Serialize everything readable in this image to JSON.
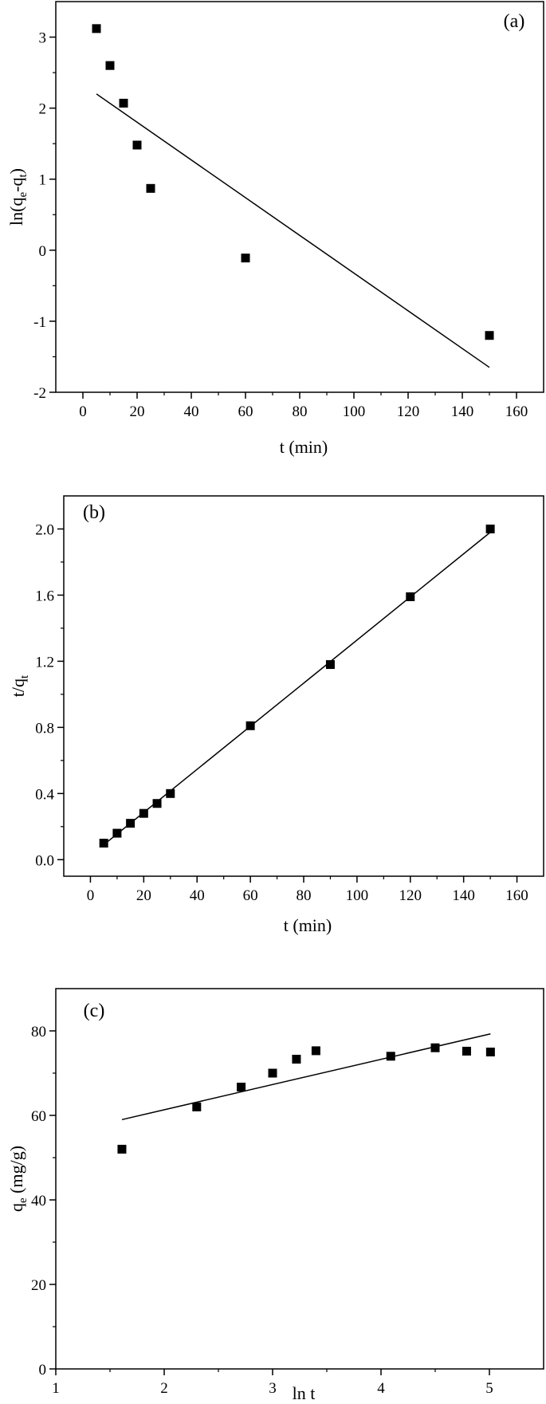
{
  "chart_data": [
    {
      "type": "scatter",
      "panel_label": "(a)",
      "xlabel": "t (min)",
      "ylabel": {
        "main": "ln(q",
        "sub1": "e",
        "mid": "-q",
        "sub2": "t",
        "end": ")"
      },
      "xlim": [
        -10,
        170
      ],
      "ylim": [
        -2,
        3.5
      ],
      "xticks": [
        0,
        20,
        40,
        60,
        80,
        100,
        120,
        140,
        160
      ],
      "yticks": [
        -2,
        -1,
        0,
        1,
        2,
        3
      ],
      "series": [
        {
          "marker": "square",
          "x": [
            5,
            10,
            15,
            20,
            25,
            60,
            150
          ],
          "y": [
            3.12,
            2.6,
            2.07,
            1.48,
            0.87,
            -0.11,
            -1.2
          ]
        }
      ],
      "fit_line": {
        "x": [
          5,
          150
        ],
        "y": [
          2.2,
          -1.65
        ]
      }
    },
    {
      "type": "scatter",
      "panel_label": "(b)",
      "xlabel": "t (min)",
      "ylabel": {
        "main": "t/q",
        "sub1": "t"
      },
      "xlim": [
        -10,
        170
      ],
      "ylim": [
        -0.1,
        2.2
      ],
      "xticks": [
        0,
        20,
        40,
        60,
        80,
        100,
        120,
        140,
        160
      ],
      "yticks": [
        0.0,
        0.4,
        0.8,
        1.2,
        1.6,
        2.0
      ],
      "ytick_labels": [
        "0.0",
        "0.4",
        "0.8",
        "1.2",
        "1.6",
        "2.0"
      ],
      "series": [
        {
          "marker": "square",
          "x": [
            5,
            10,
            15,
            20,
            25,
            30,
            60,
            90,
            120,
            150
          ],
          "y": [
            0.1,
            0.16,
            0.22,
            0.28,
            0.34,
            0.4,
            0.81,
            1.18,
            1.59,
            2.0
          ]
        }
      ],
      "fit_line": {
        "x": [
          5,
          150
        ],
        "y": [
          0.09,
          1.98
        ]
      }
    },
    {
      "type": "scatter",
      "panel_label": "(c)",
      "xlabel": "ln t",
      "ylabel": {
        "main": "q",
        "sub1": "e",
        "end": " (mg/g)"
      },
      "xlim": [
        1,
        5.5
      ],
      "ylim": [
        0,
        90
      ],
      "xticks": [
        1,
        2,
        3,
        4,
        5
      ],
      "yticks": [
        0,
        20,
        40,
        60,
        80
      ],
      "series": [
        {
          "marker": "square",
          "x": [
            1.61,
            2.3,
            2.71,
            3.0,
            3.22,
            3.4,
            4.09,
            4.5,
            4.79,
            5.01
          ],
          "y": [
            52,
            62,
            66.7,
            70,
            73.3,
            75.3,
            74,
            76,
            75.2,
            75
          ]
        }
      ],
      "fit_line": {
        "x": [
          1.61,
          5.01
        ],
        "y": [
          59,
          79.3
        ]
      }
    }
  ]
}
